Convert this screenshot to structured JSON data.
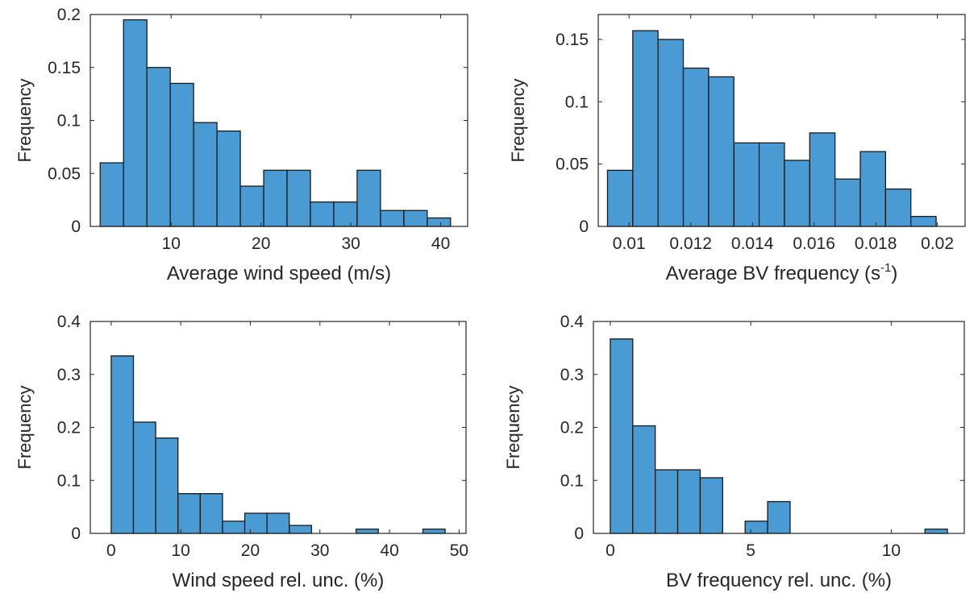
{
  "colors": {
    "bar_fill": "#4a9ad4",
    "bar_edge": "#1a1a1a",
    "axis": "#262626"
  },
  "chart_data": [
    {
      "type": "bar",
      "xlabel": "Average wind speed (m/s)",
      "ylabel": "Frequency",
      "xlim": [
        1,
        43
      ],
      "ylim": [
        0,
        0.2
      ],
      "xticks": [
        10,
        20,
        30,
        40
      ],
      "xtick_labels": [
        "10",
        "20",
        "30",
        "40"
      ],
      "yticks": [
        0,
        0.05,
        0.1,
        0.15,
        0.2
      ],
      "ytick_labels": [
        "0",
        "0.05",
        "0.1",
        "0.15",
        "0.2"
      ],
      "bin_edges": [
        2.1,
        4.7,
        7.3,
        9.9,
        12.5,
        15.1,
        17.7,
        20.3,
        22.9,
        25.5,
        28.1,
        30.7,
        33.3,
        35.9,
        38.5,
        41.1
      ],
      "values": [
        0.06,
        0.195,
        0.15,
        0.135,
        0.098,
        0.09,
        0.038,
        0.053,
        0.053,
        0.023,
        0.023,
        0.053,
        0.015,
        0.015,
        0.008
      ],
      "grid": false
    },
    {
      "type": "bar",
      "xlabel": "Average BV frequency (s",
      "xlabel_superscript": "-1",
      "xlabel_suffix": ")",
      "ylabel": "Frequency",
      "xlim": [
        0.009,
        0.0209
      ],
      "ylim": [
        0,
        0.17
      ],
      "xticks": [
        0.01,
        0.012,
        0.014,
        0.016,
        0.018,
        0.02
      ],
      "xtick_labels": [
        "0.01",
        "0.012",
        "0.014",
        "0.016",
        "0.018",
        "0.02"
      ],
      "yticks": [
        0,
        0.05,
        0.1,
        0.15
      ],
      "ytick_labels": [
        "0",
        "0.05",
        "0.1",
        "0.15"
      ],
      "bin_edges": [
        0.0093,
        0.01012,
        0.01094,
        0.01176,
        0.01258,
        0.0134,
        0.01422,
        0.01504,
        0.01586,
        0.01668,
        0.0175,
        0.01832,
        0.01914,
        0.01996,
        0.02078
      ],
      "values": [
        0.045,
        0.157,
        0.15,
        0.127,
        0.12,
        0.067,
        0.067,
        0.053,
        0.075,
        0.038,
        0.06,
        0.03,
        0.008,
        0.0,
        0.008
      ],
      "grid": false
    },
    {
      "type": "bar",
      "xlabel": "Wind speed rel. unc. (%)",
      "ylabel": "Frequency",
      "xlim": [
        -3,
        51
      ],
      "ylim": [
        0,
        0.4
      ],
      "xticks": [
        0,
        10,
        20,
        30,
        40,
        50
      ],
      "xtick_labels": [
        "0",
        "10",
        "20",
        "30",
        "40",
        "50"
      ],
      "yticks": [
        0,
        0.1,
        0.2,
        0.3,
        0.4
      ],
      "ytick_labels": [
        "0",
        "0.1",
        "0.2",
        "0.3",
        "0.4"
      ],
      "bin_edges": [
        0,
        3.2,
        6.4,
        9.6,
        12.8,
        16.0,
        19.2,
        22.4,
        25.6,
        28.8,
        32.0,
        35.2,
        38.4,
        41.6,
        44.8,
        48.0
      ],
      "values": [
        0.335,
        0.21,
        0.18,
        0.075,
        0.075,
        0.023,
        0.038,
        0.038,
        0.015,
        0.0,
        0.0,
        0.008,
        0.0,
        0.0,
        0.008
      ],
      "grid": false
    },
    {
      "type": "bar",
      "xlabel": "BV frequency rel. unc. (%)",
      "ylabel": "Frequency",
      "xlim": [
        -0.6,
        12.6
      ],
      "ylim": [
        0,
        0.4
      ],
      "xticks": [
        0,
        5,
        10
      ],
      "xtick_labels": [
        "0",
        "5",
        "10"
      ],
      "yticks": [
        0,
        0.1,
        0.2,
        0.3,
        0.4
      ],
      "ytick_labels": [
        "0",
        "0.1",
        "0.2",
        "0.3",
        "0.4"
      ],
      "bin_edges": [
        0,
        0.8,
        1.6,
        2.4,
        3.2,
        4.0,
        4.8,
        5.6,
        6.4,
        7.2,
        8.0,
        8.8,
        9.6,
        10.4,
        11.2,
        12.0
      ],
      "values": [
        0.367,
        0.203,
        0.12,
        0.12,
        0.105,
        0.0,
        0.023,
        0.06,
        0.0,
        0.0,
        0.0,
        0.0,
        0.0,
        0.0,
        0.008
      ],
      "grid": false
    }
  ]
}
